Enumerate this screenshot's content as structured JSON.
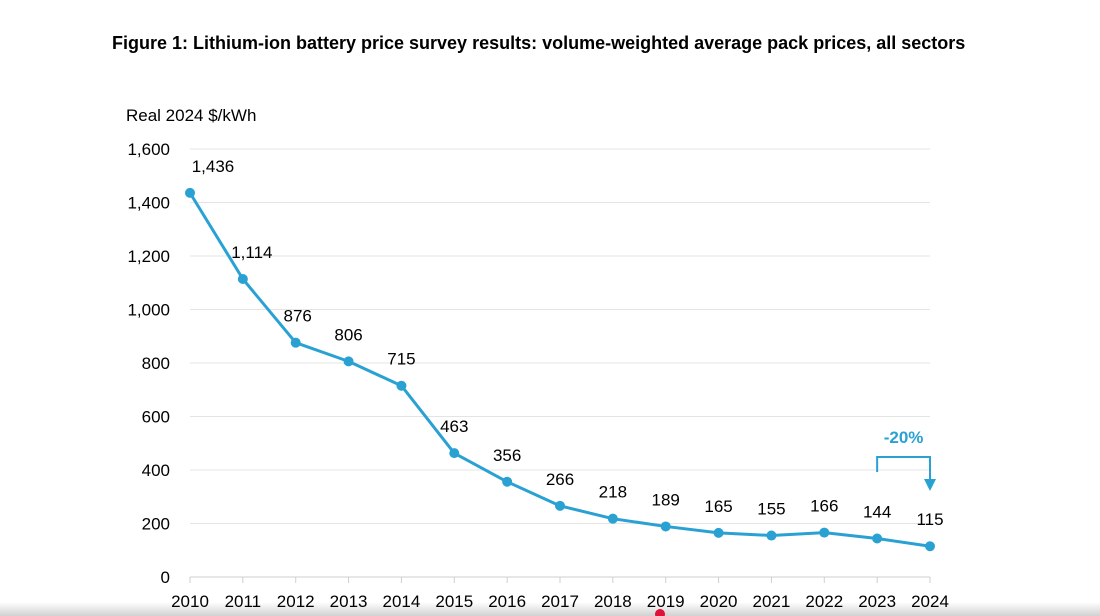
{
  "chart_data": {
    "type": "line",
    "title": "Figure 1:  Lithium-ion battery price survey results: volume-weighted average pack prices, all sectors",
    "ylabel": "Real 2024 $/kWh",
    "xlabel": "",
    "x": [
      2010,
      2011,
      2012,
      2013,
      2014,
      2015,
      2016,
      2017,
      2018,
      2019,
      2020,
      2021,
      2022,
      2023,
      2024
    ],
    "values": [
      1436,
      1114,
      876,
      806,
      715,
      463,
      356,
      266,
      218,
      189,
      165,
      155,
      166,
      144,
      115
    ],
    "data_labels": [
      "1,436",
      "1,114",
      "876",
      "806",
      "715",
      "463",
      "356",
      "266",
      "218",
      "189",
      "165",
      "155",
      "166",
      "144",
      "115"
    ],
    "y_ticks": [
      "0",
      "200",
      "400",
      "600",
      "800",
      "1,000",
      "1,200",
      "1,400",
      "1,600"
    ],
    "ylim": [
      0,
      1600
    ],
    "grid": true,
    "line_color": "#2aa1d3",
    "annotation": {
      "text": "-20%",
      "from": 2023,
      "to": 2024
    }
  }
}
